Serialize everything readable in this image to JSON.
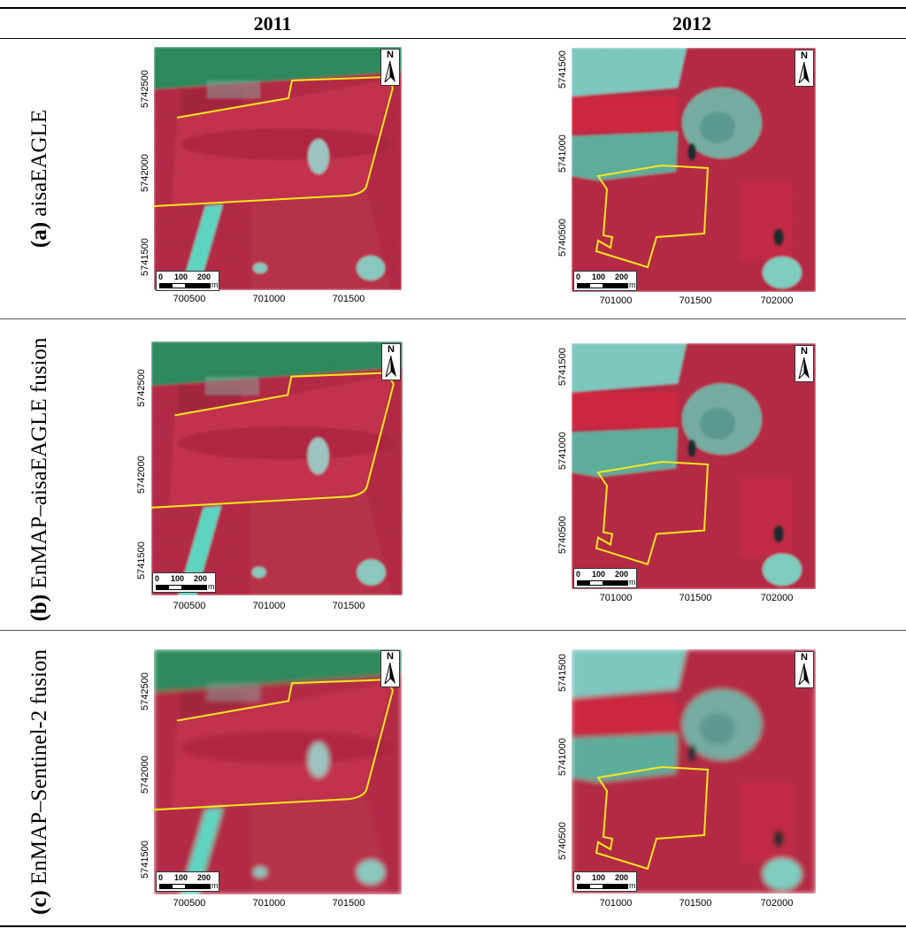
{
  "header": {
    "col_2011": "2011",
    "col_2012": "2012"
  },
  "rows": [
    {
      "letter": "(a)",
      "label": "aisaEAGLE"
    },
    {
      "letter": "(b)",
      "label": "EnMAP–aisaEAGLE fusion"
    },
    {
      "letter": "(c)",
      "label": "EnMAP–Sentinel-2 fusion"
    }
  ],
  "map_2011": {
    "x_ticks": [
      "700500",
      "701000",
      "701500"
    ],
    "y_ticks": [
      "5742500",
      "5742000",
      "5741500"
    ]
  },
  "map_2012": {
    "x_ticks": [
      "701000",
      "701500",
      "702000"
    ],
    "y_ticks": [
      "5741500",
      "5741000",
      "5740500"
    ]
  },
  "north_arrow": {
    "label": "N"
  },
  "scale_bar": {
    "labels": [
      "0",
      "100",
      "200"
    ],
    "unit": "m"
  },
  "colors": {
    "field_boundary": "#f5e61e",
    "vegetation_red": "#c8243c",
    "water_cyan": "#5fd6c3",
    "grass_green": "#2f8a5e"
  }
}
